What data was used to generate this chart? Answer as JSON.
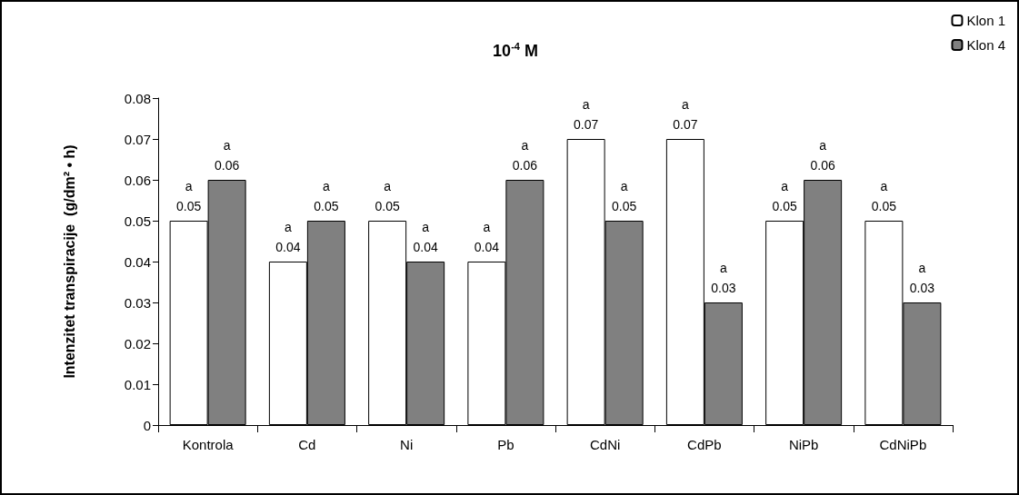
{
  "chart_data": {
    "type": "bar",
    "title": "10$^{-4}$ M",
    "ylabel": "Intenzitet transpiracije  (g/dm² • h)",
    "categories": [
      "Kontrola",
      "Cd",
      "Ni",
      "Pb",
      "CdNi",
      "CdPb",
      "NiPb",
      "CdNiPb"
    ],
    "series": [
      {
        "name": "Klon 1",
        "color": "#ffffff",
        "values": [
          0.05,
          0.04,
          0.05,
          0.04,
          0.07,
          0.07,
          0.05,
          0.05
        ],
        "value_labels": [
          "a\n0.05",
          "a\n0.04",
          "a\n0.05",
          "a\n0.04",
          "a\n0.07",
          "a\n0.07",
          "a\n0.05",
          "a\n0.05"
        ]
      },
      {
        "name": "Klon 4",
        "color": "#808080",
        "values": [
          0.06,
          0.05,
          0.04,
          0.06,
          0.05,
          0.03,
          0.06,
          0.03
        ],
        "value_labels": [
          "a\n0.06",
          "a\n0.05",
          "a\n0.04",
          "a\n0.06",
          "a\n0.05",
          "a\n0.03",
          "a\n0.06",
          "a\n0.03"
        ]
      }
    ],
    "ylim": [
      0,
      0.08
    ],
    "yticks": [
      0,
      0.01,
      0.02,
      0.03,
      0.04,
      0.05,
      0.06,
      0.07,
      0.08
    ],
    "grid": false,
    "legend": "top right"
  }
}
